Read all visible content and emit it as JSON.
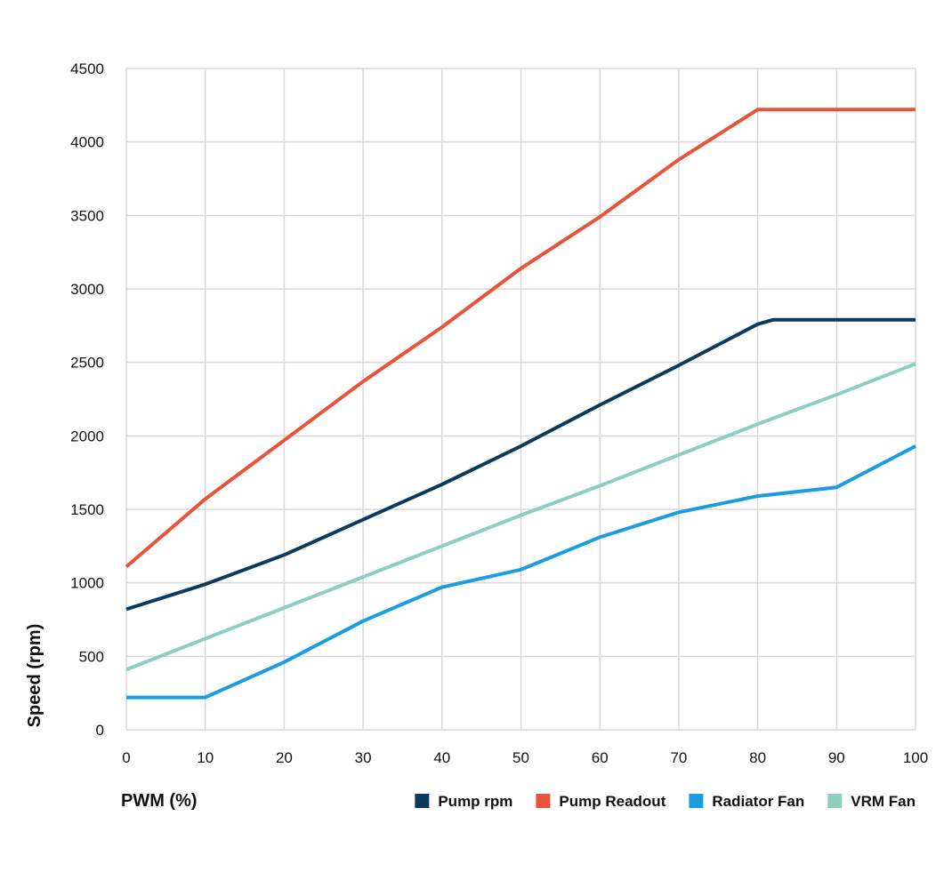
{
  "chart_data": {
    "type": "line",
    "title": "",
    "xlabel": "PWM (%)",
    "ylabel": "Speed (rpm)",
    "x": [
      0,
      10,
      20,
      30,
      40,
      50,
      60,
      70,
      80,
      90,
      100
    ],
    "xlim": [
      0,
      100
    ],
    "ylim": [
      0,
      4500
    ],
    "xticks": [
      "0",
      "10",
      "20",
      "30",
      "40",
      "50",
      "60",
      "70",
      "80",
      "90",
      "100"
    ],
    "yticks": [
      "0",
      "500",
      "1000",
      "1500",
      "2000",
      "2500",
      "3000",
      "3500",
      "4000",
      "4500"
    ],
    "grid": true,
    "legend_position": "bottom-right",
    "series": [
      {
        "name": "Pump rpm",
        "color": "#0b3a5e",
        "points": [
          [
            0,
            820
          ],
          [
            10,
            990
          ],
          [
            20,
            1190
          ],
          [
            30,
            1430
          ],
          [
            40,
            1670
          ],
          [
            50,
            1930
          ],
          [
            60,
            2210
          ],
          [
            70,
            2480
          ],
          [
            80,
            2760
          ],
          [
            82,
            2790
          ],
          [
            90,
            2790
          ],
          [
            100,
            2790
          ]
        ]
      },
      {
        "name": "Pump Readout",
        "color": "#e8533a",
        "points": [
          [
            0,
            1110
          ],
          [
            10,
            1570
          ],
          [
            20,
            1970
          ],
          [
            30,
            2370
          ],
          [
            40,
            2740
          ],
          [
            50,
            3140
          ],
          [
            60,
            3490
          ],
          [
            70,
            3880
          ],
          [
            80,
            4220
          ],
          [
            90,
            4220
          ],
          [
            100,
            4220
          ]
        ]
      },
      {
        "name": "Radiator Fan",
        "color": "#1a9de0",
        "points": [
          [
            0,
            220
          ],
          [
            10,
            220
          ],
          [
            20,
            460
          ],
          [
            30,
            740
          ],
          [
            40,
            970
          ],
          [
            50,
            1090
          ],
          [
            60,
            1310
          ],
          [
            70,
            1480
          ],
          [
            80,
            1590
          ],
          [
            90,
            1650
          ],
          [
            100,
            1930
          ]
        ]
      },
      {
        "name": "VRM Fan",
        "color": "#8dcdc2",
        "points": [
          [
            0,
            410
          ],
          [
            10,
            620
          ],
          [
            20,
            830
          ],
          [
            30,
            1040
          ],
          [
            40,
            1250
          ],
          [
            50,
            1460
          ],
          [
            60,
            1660
          ],
          [
            70,
            1870
          ],
          [
            80,
            2080
          ],
          [
            90,
            2280
          ],
          [
            100,
            2490
          ]
        ]
      }
    ]
  }
}
